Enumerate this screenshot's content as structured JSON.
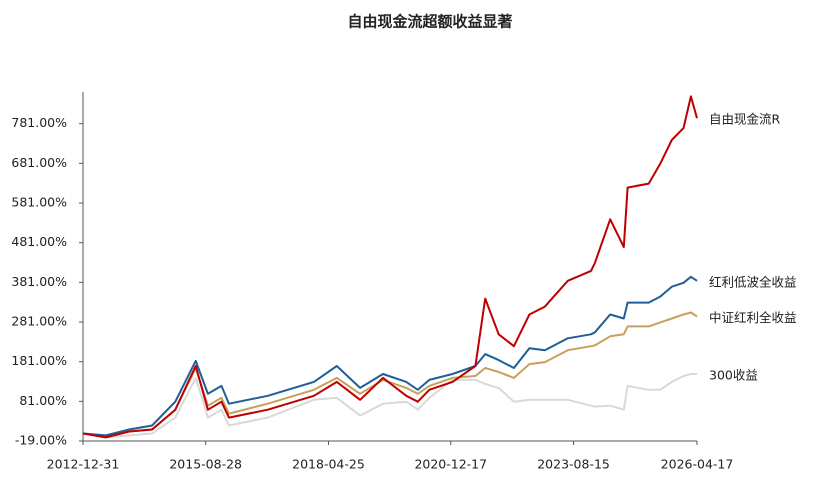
{
  "chart_data": {
    "type": "line",
    "title": "自由现金流超额收益显著",
    "x": [
      "2012-12-31",
      "2013-06-30",
      "2013-12-31",
      "2014-06-30",
      "2014-12-31",
      "2015-06-10",
      "2015-09-15",
      "2015-12-31",
      "2016-02-28",
      "2016-12-31",
      "2017-12-31",
      "2018-06-30",
      "2018-12-31",
      "2019-06-30",
      "2019-12-31",
      "2020-03-31",
      "2020-06-30",
      "2020-12-31",
      "2021-06-30",
      "2021-09-15",
      "2021-12-31",
      "2022-04-30",
      "2022-08-31",
      "2022-12-31",
      "2023-06-30",
      "2023-12-31",
      "2024-01-31",
      "2024-05-31",
      "2024-09-15",
      "2024-10-15",
      "2025-03-31",
      "2025-06-30",
      "2025-09-30",
      "2025-12-31",
      "2026-02-28",
      "2026-04-17"
    ],
    "series": [
      {
        "name": "自由现金流R",
        "color": "#c00000",
        "values": [
          0,
          -10,
          5,
          10,
          60,
          170,
          60,
          80,
          40,
          60,
          95,
          130,
          85,
          140,
          95,
          80,
          110,
          130,
          170,
          340,
          250,
          220,
          300,
          320,
          385,
          410,
          430,
          540,
          470,
          620,
          630,
          680,
          740,
          770,
          850,
          795
        ]
      },
      {
        "name": "红利低波全收益",
        "color": "#1f5e96",
        "values": [
          0,
          -5,
          10,
          20,
          80,
          183,
          100,
          120,
          75,
          95,
          130,
          170,
          115,
          150,
          130,
          110,
          135,
          150,
          170,
          200,
          185,
          165,
          215,
          210,
          240,
          250,
          255,
          300,
          290,
          330,
          330,
          345,
          370,
          380,
          395,
          385
        ]
      },
      {
        "name": "中证红利全收益",
        "color": "#c9a05b",
        "values": [
          0,
          -8,
          5,
          10,
          60,
          165,
          70,
          90,
          50,
          75,
          110,
          140,
          100,
          135,
          115,
          100,
          120,
          140,
          145,
          165,
          155,
          140,
          175,
          180,
          210,
          220,
          222,
          245,
          250,
          270,
          270,
          280,
          290,
          300,
          305,
          295
        ]
      },
      {
        "name": "300收益",
        "color": "#d9d9d9",
        "values": [
          0,
          -10,
          -5,
          0,
          40,
          140,
          40,
          60,
          20,
          40,
          85,
          90,
          45,
          75,
          80,
          60,
          90,
          135,
          135,
          125,
          115,
          80,
          85,
          85,
          85,
          70,
          68,
          70,
          60,
          120,
          110,
          110,
          130,
          145,
          150,
          150
        ]
      }
    ],
    "xlim": [
      "2012-12-31",
      "2026-04-17"
    ],
    "xticks": [
      "2012-12-31",
      "2015-08-28",
      "2018-04-25",
      "2020-12-17",
      "2023-08-15",
      "2026-04-17"
    ],
    "ylim": [
      -19,
      861
    ],
    "yticks": [
      {
        "value": -19,
        "label": "-19.00%"
      },
      {
        "value": 81,
        "label": "81.00%"
      },
      {
        "value": 181,
        "label": "181.00%"
      },
      {
        "value": 281,
        "label": "281.00%"
      },
      {
        "value": 381,
        "label": "381.00%"
      },
      {
        "value": 481,
        "label": "481.00%"
      },
      {
        "value": 581,
        "label": "581.00%"
      },
      {
        "value": 681,
        "label": "681.00%"
      },
      {
        "value": 781,
        "label": "781.00%"
      }
    ],
    "grid": false
  }
}
